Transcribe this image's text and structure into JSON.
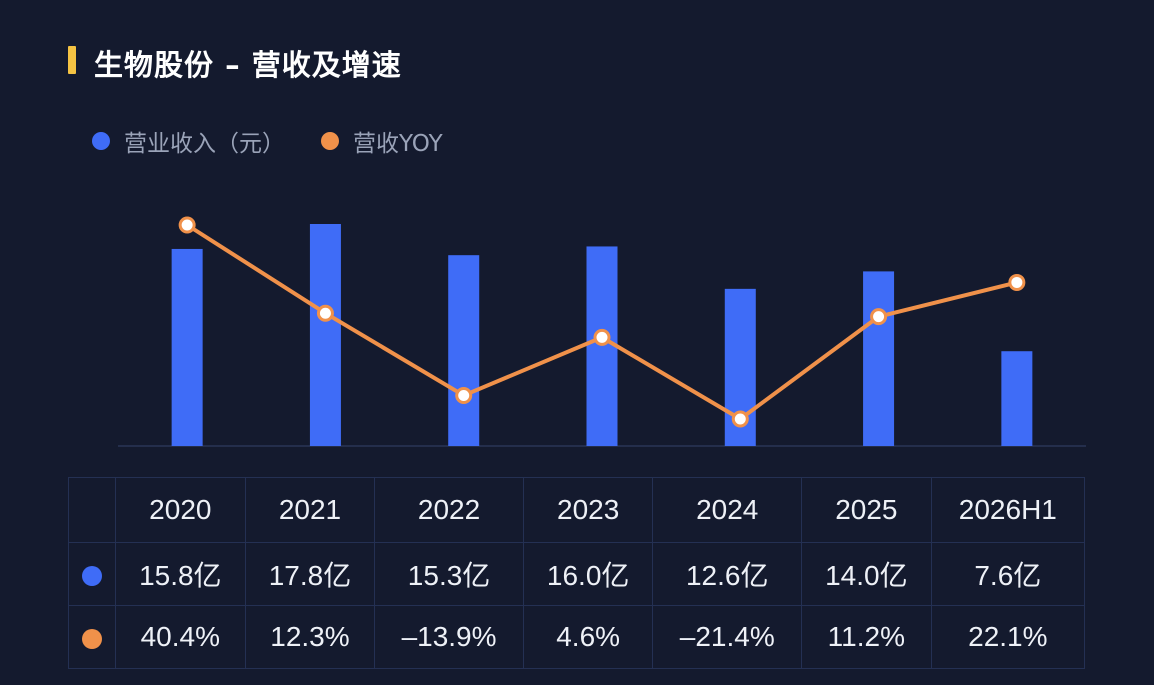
{
  "title": "生物股份 – 营收及增速",
  "colors": {
    "bar": "#3f6cf7",
    "line": "#f0914a",
    "accent": "#f5c343"
  },
  "legend": [
    {
      "label": "营业收入（元）",
      "color": "#3f6cf7"
    },
    {
      "label": "营收YOY",
      "color": "#f0914a"
    }
  ],
  "chart_data": {
    "type": "bar",
    "categories": [
      "2020",
      "2021",
      "2022",
      "2023",
      "2024",
      "2025",
      "2026H1"
    ],
    "series": [
      {
        "name": "营业收入（元）",
        "type": "bar",
        "values": [
          15.8,
          17.8,
          15.3,
          16.0,
          12.6,
          14.0,
          7.6
        ]
      },
      {
        "name": "营收YOY",
        "type": "line",
        "values": [
          40.4,
          12.3,
          -13.9,
          4.6,
          -21.4,
          11.2,
          22.1
        ]
      }
    ],
    "grid": false,
    "legend_position": "top-left"
  },
  "table": {
    "columns": [
      "2020",
      "2021",
      "2022",
      "2023",
      "2024",
      "2025",
      "2026H1"
    ],
    "revenue_row": [
      "15.8亿",
      "17.8亿",
      "15.3亿",
      "16.0亿",
      "12.6亿",
      "14.0亿",
      "7.6亿"
    ],
    "yoy_row": [
      "40.4%",
      "12.3%",
      "–13.9%",
      "4.6%",
      "–21.4%",
      "11.2%",
      "22.1%"
    ]
  }
}
